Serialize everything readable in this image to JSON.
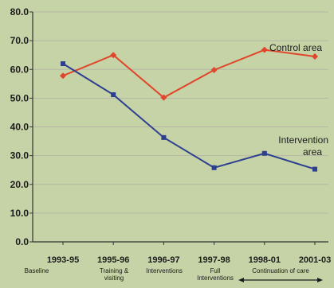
{
  "chart_data": {
    "type": "line",
    "categories": [
      "1993-95",
      "1995-96",
      "1996-97",
      "1997-98",
      "1998-01",
      "2001-03"
    ],
    "sublabels": [
      "Baseline",
      "Training &\nvisiting",
      "Interventions",
      "Full\nInterventions",
      "Continuation of care",
      ""
    ],
    "series": [
      {
        "name": "Control area",
        "values": [
          57.8,
          65.0,
          50.2,
          59.8,
          66.8,
          64.5
        ],
        "color": "#e0462c"
      },
      {
        "name": "Intervention\narea",
        "values": [
          62.0,
          51.2,
          36.3,
          25.8,
          30.8,
          25.3
        ],
        "color": "#2d3f8f"
      }
    ],
    "yticks": [
      "0.0",
      "10.0",
      "20.0",
      "30.0",
      "40.0",
      "50.0",
      "60.0",
      "70.0",
      "80.0"
    ],
    "ylim": [
      0,
      80
    ],
    "title": "",
    "xlabel": "",
    "ylabel": "",
    "grid": true,
    "grid_color": "#b7b7a7",
    "axis_color": "#333333"
  }
}
